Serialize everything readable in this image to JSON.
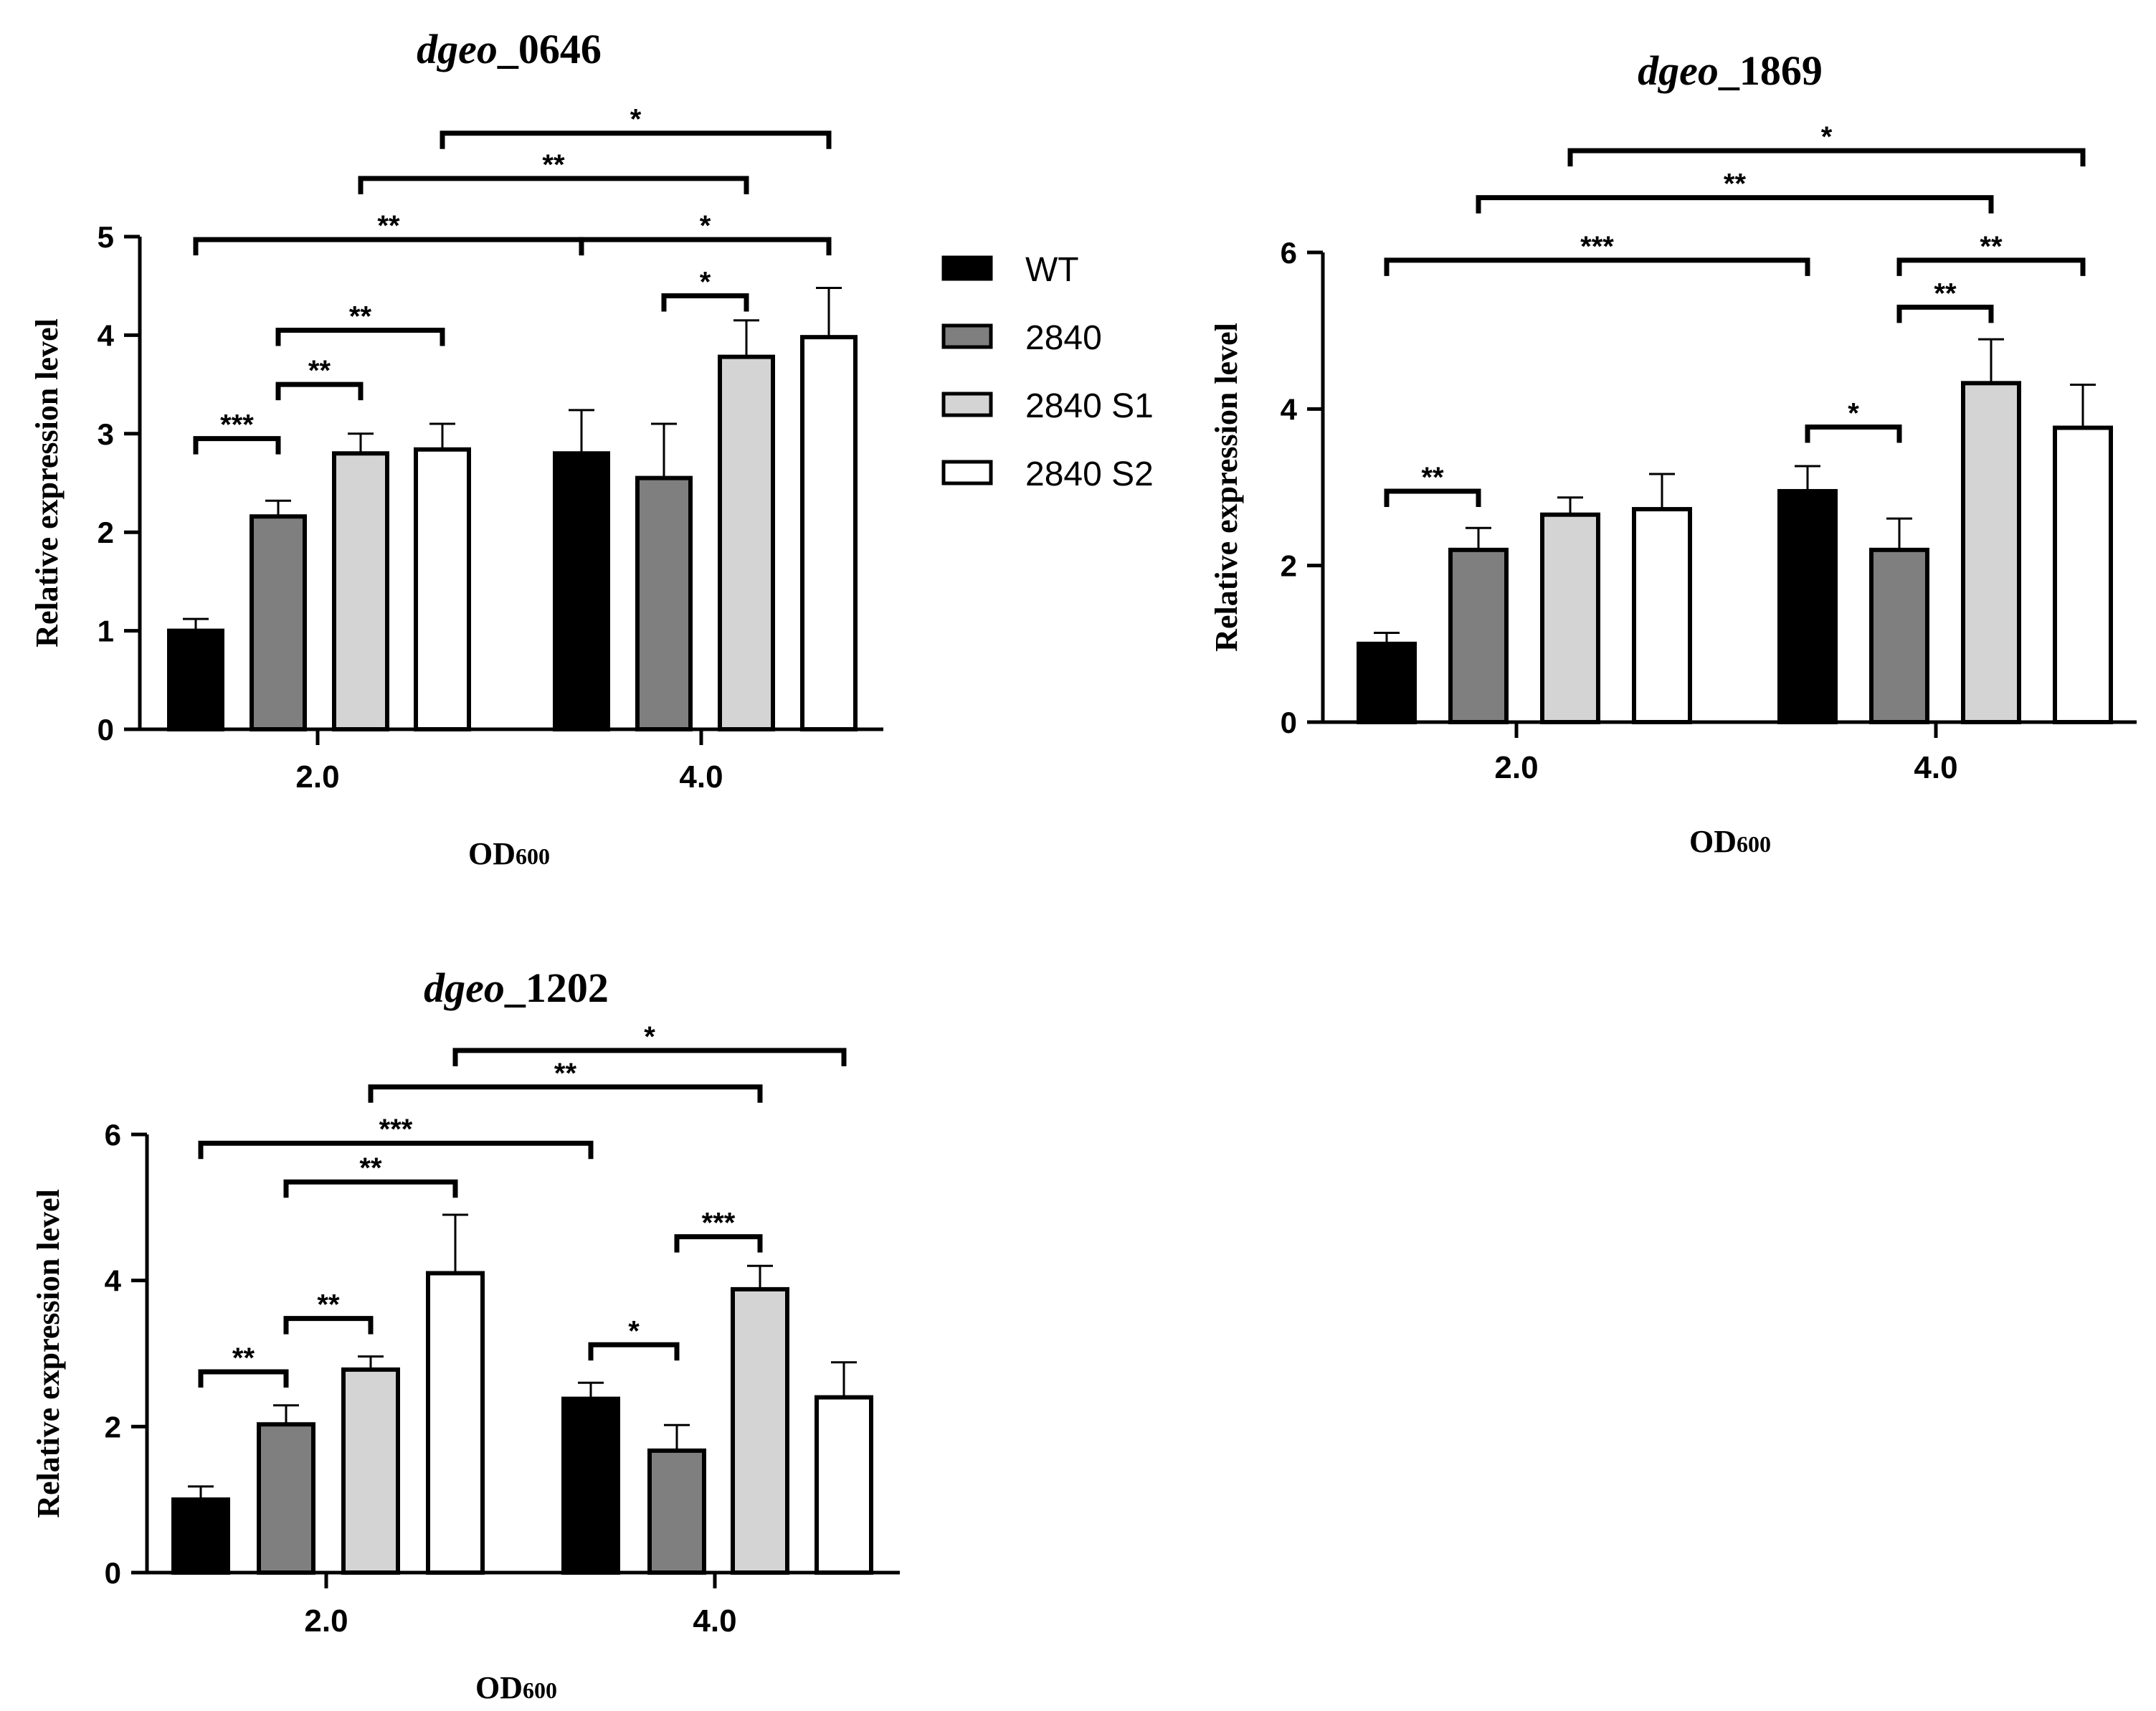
{
  "legend": [
    {
      "name": "WT",
      "color": "#000000"
    },
    {
      "name": "2840",
      "color": "#7f7f7f"
    },
    {
      "name": "2840 S1",
      "color": "#d4d4d4"
    },
    {
      "name": "2840 S2",
      "color": "#ffffff"
    }
  ],
  "chart_data": [
    {
      "type": "bar",
      "title_italic": "dgeo",
      "title_rest": "_0646",
      "ylabel": "Relative expression level",
      "xlabel_main": "OD",
      "xlabel_sub": "600",
      "categories": [
        "2.0",
        "4.0"
      ],
      "ylim": [
        0,
        5
      ],
      "yticks": [
        "0",
        "1",
        "2",
        "3",
        "4",
        "5"
      ],
      "series": [
        {
          "name": "WT",
          "values": [
            1.0,
            2.8
          ],
          "errors": [
            0.12,
            0.44
          ]
        },
        {
          "name": "2840",
          "values": [
            2.16,
            2.55
          ],
          "errors": [
            0.16,
            0.55
          ]
        },
        {
          "name": "2840 S1",
          "values": [
            2.8,
            3.78
          ],
          "errors": [
            0.2,
            0.37
          ]
        },
        {
          "name": "2840 S2",
          "values": [
            2.84,
            3.98
          ],
          "errors": [
            0.26,
            0.5
          ]
        }
      ],
      "significance": [
        {
          "from": [
            0,
            0
          ],
          "to": [
            0,
            1
          ],
          "y": 2.95,
          "label": "***"
        },
        {
          "from": [
            0,
            1
          ],
          "to": [
            0,
            2
          ],
          "y": 3.5,
          "label": "**"
        },
        {
          "from": [
            0,
            1
          ],
          "to": [
            0,
            3
          ],
          "y": 4.05,
          "label": "**"
        },
        {
          "from": [
            0,
            0
          ],
          "to": [
            1,
            0
          ],
          "y": 4.97,
          "label": "**"
        },
        {
          "from": [
            1,
            1
          ],
          "to": [
            1,
            2
          ],
          "y": 4.4,
          "label": "*"
        },
        {
          "from": [
            1,
            0
          ],
          "to": [
            1,
            3
          ],
          "y": 4.97,
          "label": "*"
        },
        {
          "from": [
            0,
            2
          ],
          "to": [
            1,
            2
          ],
          "y": 5.59,
          "label": "**"
        },
        {
          "from": [
            0,
            3
          ],
          "to": [
            1,
            3
          ],
          "y": 6.05,
          "label": "*"
        }
      ]
    },
    {
      "type": "bar",
      "title_italic": "dgeo",
      "title_rest": "_1869",
      "ylabel": "Relative expression level",
      "xlabel_main": "OD",
      "xlabel_sub": "600",
      "categories": [
        "2.0",
        "4.0"
      ],
      "ylim": [
        0,
        6
      ],
      "yticks": [
        "0",
        "2",
        "4",
        "6"
      ],
      "series": [
        {
          "name": "WT",
          "values": [
            1.0,
            2.95
          ],
          "errors": [
            0.14,
            0.32
          ]
        },
        {
          "name": "2840",
          "values": [
            2.2,
            2.2
          ],
          "errors": [
            0.28,
            0.4
          ]
        },
        {
          "name": "2840 S1",
          "values": [
            2.65,
            4.33
          ],
          "errors": [
            0.22,
            0.56
          ]
        },
        {
          "name": "2840 S2",
          "values": [
            2.72,
            3.76
          ],
          "errors": [
            0.45,
            0.55
          ]
        }
      ],
      "significance": [
        {
          "from": [
            0,
            0
          ],
          "to": [
            0,
            1
          ],
          "y": 2.95,
          "label": "**"
        },
        {
          "from": [
            1,
            0
          ],
          "to": [
            1,
            1
          ],
          "y": 3.77,
          "label": "*"
        },
        {
          "from": [
            1,
            1
          ],
          "to": [
            1,
            2
          ],
          "y": 5.3,
          "label": "**"
        },
        {
          "from": [
            1,
            1
          ],
          "to": [
            1,
            3
          ],
          "y": 5.9,
          "label": "**"
        },
        {
          "from": [
            0,
            0
          ],
          "to": [
            1,
            0
          ],
          "y": 5.9,
          "label": "***"
        },
        {
          "from": [
            0,
            1
          ],
          "to": [
            1,
            2
          ],
          "y": 6.7,
          "label": "**"
        },
        {
          "from": [
            0,
            2
          ],
          "to": [
            1,
            3
          ],
          "y": 7.3,
          "label": "*"
        }
      ]
    },
    {
      "type": "bar",
      "title_italic": "dgeo",
      "title_rest": "_1202",
      "ylabel": "Relative expression level",
      "xlabel_main": "OD",
      "xlabel_sub": "600",
      "categories": [
        "2.0",
        "4.0"
      ],
      "ylim": [
        0,
        6
      ],
      "yticks": [
        "0",
        "2",
        "4",
        "6"
      ],
      "series": [
        {
          "name": "WT",
          "values": [
            1.0,
            2.38
          ],
          "errors": [
            0.18,
            0.22
          ]
        },
        {
          "name": "2840",
          "values": [
            2.03,
            1.67
          ],
          "errors": [
            0.26,
            0.35
          ]
        },
        {
          "name": "2840 S1",
          "values": [
            2.78,
            3.88
          ],
          "errors": [
            0.18,
            0.32
          ]
        },
        {
          "name": "2840 S2",
          "values": [
            4.1,
            2.4
          ],
          "errors": [
            0.8,
            0.48
          ]
        }
      ],
      "significance": [
        {
          "from": [
            0,
            0
          ],
          "to": [
            0,
            1
          ],
          "y": 2.75,
          "label": "**"
        },
        {
          "from": [
            0,
            1
          ],
          "to": [
            0,
            2
          ],
          "y": 3.48,
          "label": "**"
        },
        {
          "from": [
            1,
            0
          ],
          "to": [
            1,
            1
          ],
          "y": 3.12,
          "label": "*"
        },
        {
          "from": [
            1,
            1
          ],
          "to": [
            1,
            2
          ],
          "y": 4.6,
          "label": "***"
        },
        {
          "from": [
            0,
            1
          ],
          "to": [
            0,
            3
          ],
          "y": 5.35,
          "label": "**"
        },
        {
          "from": [
            0,
            0
          ],
          "to": [
            1,
            0
          ],
          "y": 5.88,
          "label": "***"
        },
        {
          "from": [
            0,
            2
          ],
          "to": [
            1,
            2
          ],
          "y": 6.65,
          "label": "**"
        },
        {
          "from": [
            0,
            3
          ],
          "to": [
            1,
            3
          ],
          "y": 7.15,
          "label": "*"
        }
      ]
    }
  ]
}
